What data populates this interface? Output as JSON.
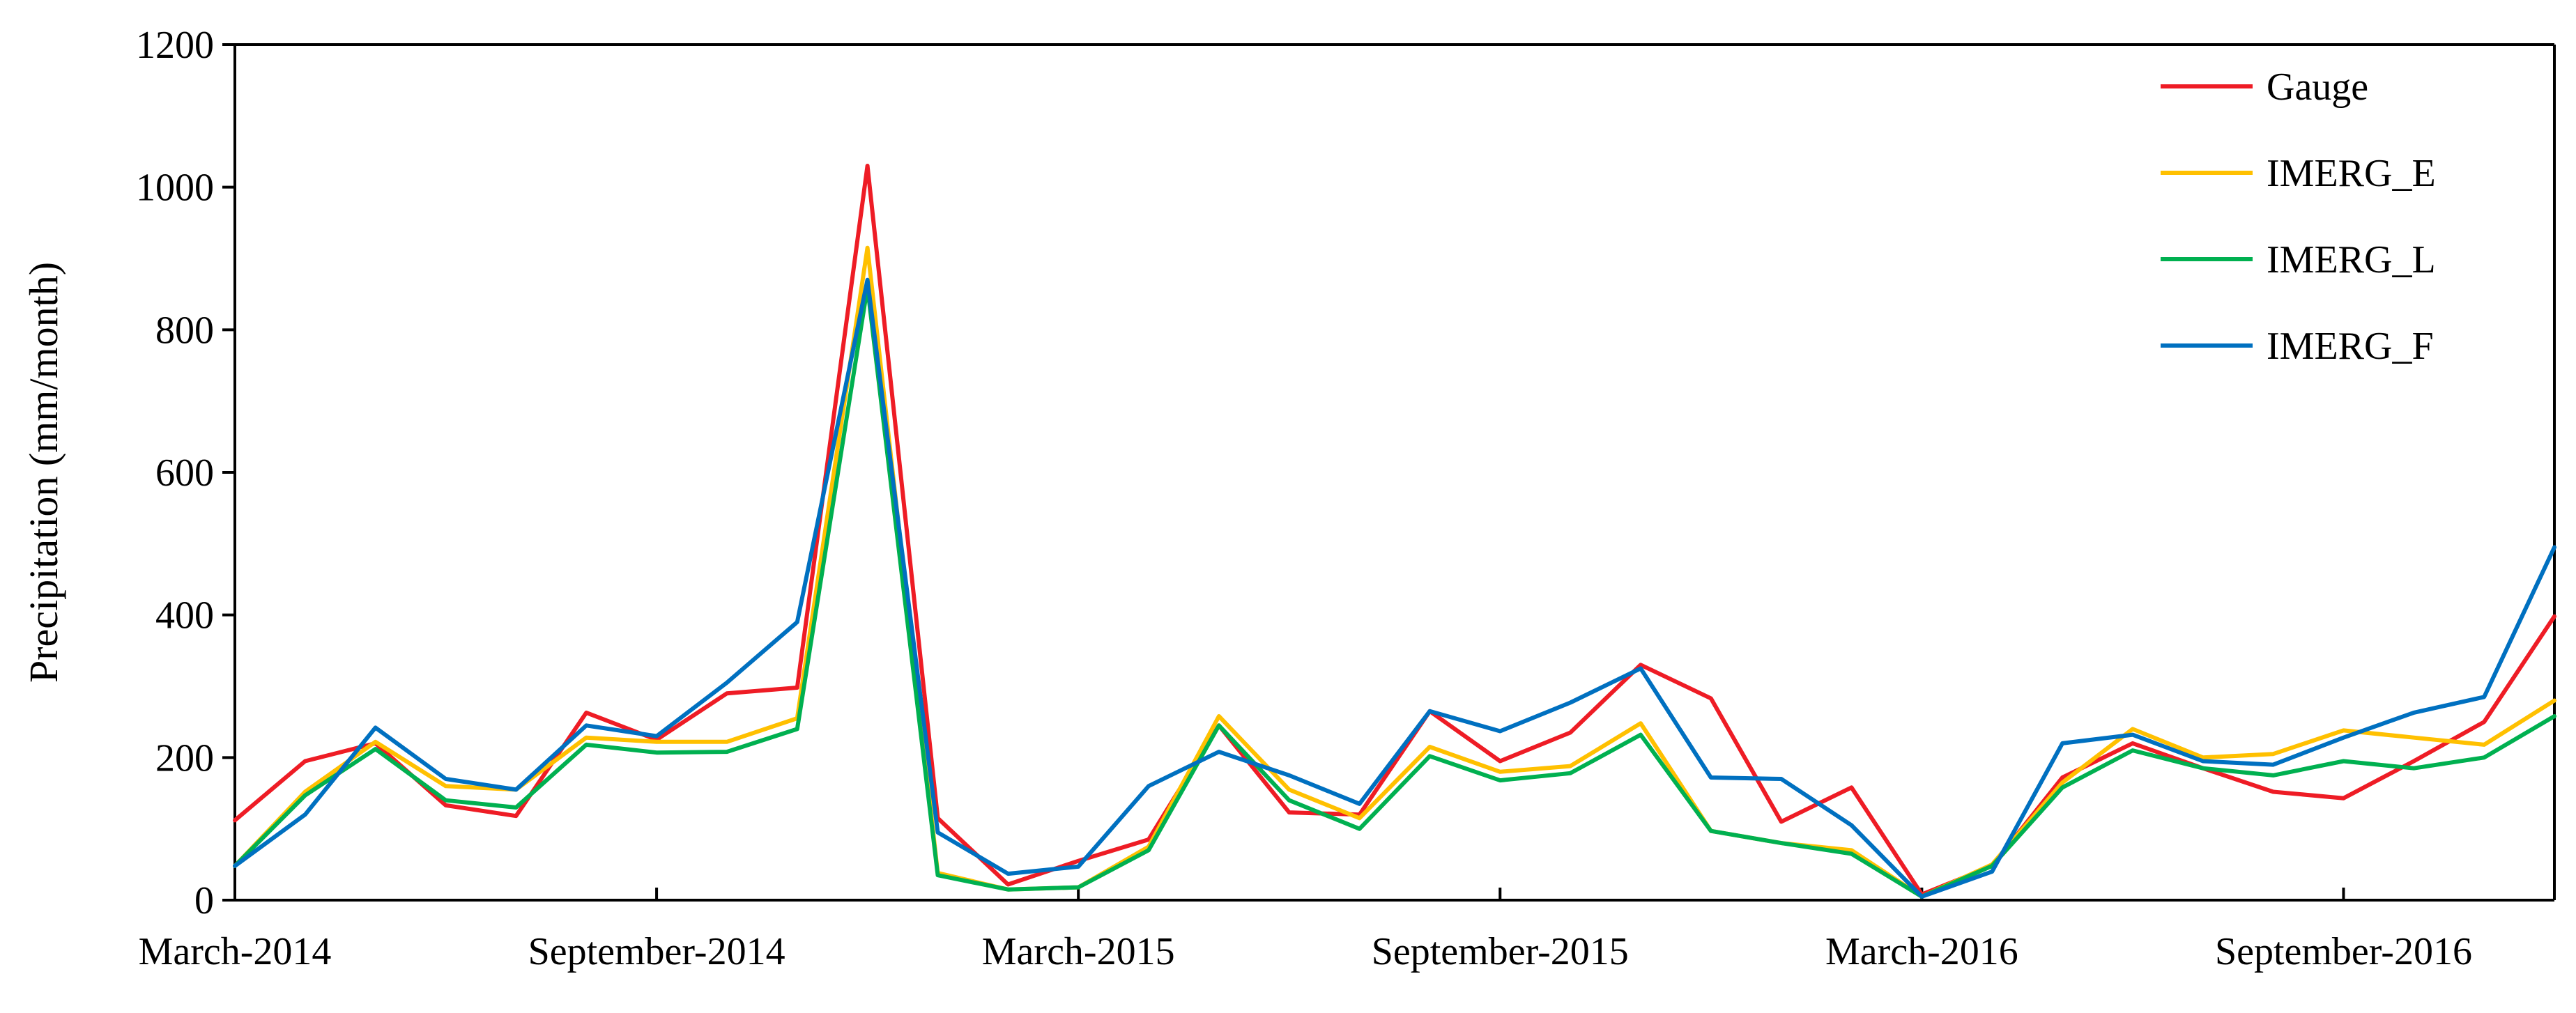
{
  "chart_data": {
    "type": "line",
    "title": "",
    "xlabel": "",
    "ylabel": "Precipitation (mm/month)",
    "ylim": [
      0,
      1200
    ],
    "yticks": [
      0,
      200,
      400,
      600,
      800,
      1000,
      1200
    ],
    "x_tick_labels": [
      "March-2014",
      "September-2014",
      "March-2015",
      "September-2015",
      "March-2016",
      "September-2016"
    ],
    "x_tick_index": [
      0,
      6,
      12,
      18,
      24,
      30
    ],
    "x": [
      "Mar-2014",
      "Apr-2014",
      "May-2014",
      "Jun-2014",
      "Jul-2014",
      "Aug-2014",
      "Sep-2014",
      "Oct-2014",
      "Nov-2014",
      "Dec-2014",
      "Jan-2015",
      "Feb-2015",
      "Mar-2015",
      "Apr-2015",
      "May-2015",
      "Jun-2015",
      "Jul-2015",
      "Aug-2015",
      "Sep-2015",
      "Oct-2015",
      "Nov-2015",
      "Dec-2015",
      "Jan-2016",
      "Feb-2016",
      "Mar-2016",
      "Apr-2016",
      "May-2016",
      "Jun-2016",
      "Jul-2016",
      "Aug-2016",
      "Sep-2016",
      "Oct-2016",
      "Nov-2016",
      "Dec-2016"
    ],
    "grid": false,
    "legend_position": "top-right",
    "series": [
      {
        "name": "Gauge",
        "color": "#ee1c25",
        "values": [
          112,
          195,
          220,
          133,
          118,
          263,
          225,
          290,
          298,
          1030,
          115,
          22,
          55,
          85,
          245,
          123,
          120,
          265,
          195,
          235,
          330,
          283,
          110,
          158,
          8,
          48,
          172,
          220,
          185,
          152,
          143,
          195,
          250,
          398
        ]
      },
      {
        "name": "IMERG_E",
        "color": "#ffc000",
        "values": [
          48,
          152,
          222,
          160,
          155,
          228,
          222,
          222,
          255,
          915,
          38,
          15,
          18,
          75,
          258,
          155,
          115,
          215,
          180,
          188,
          248,
          97,
          80,
          70,
          5,
          50,
          165,
          240,
          200,
          205,
          238,
          228,
          218,
          280
        ]
      },
      {
        "name": "IMERG_L",
        "color": "#00b050",
        "values": [
          48,
          147,
          212,
          140,
          130,
          218,
          207,
          208,
          240,
          860,
          35,
          15,
          18,
          70,
          245,
          140,
          100,
          202,
          168,
          178,
          232,
          97,
          80,
          65,
          5,
          48,
          158,
          210,
          185,
          175,
          195,
          185,
          200,
          258
        ]
      },
      {
        "name": "IMERG_F",
        "color": "#0070c0",
        "values": [
          48,
          120,
          242,
          170,
          155,
          245,
          230,
          305,
          390,
          870,
          95,
          37,
          47,
          160,
          208,
          175,
          135,
          265,
          237,
          277,
          325,
          172,
          170,
          105,
          5,
          40,
          220,
          232,
          195,
          190,
          228,
          263,
          285,
          495
        ]
      }
    ]
  }
}
